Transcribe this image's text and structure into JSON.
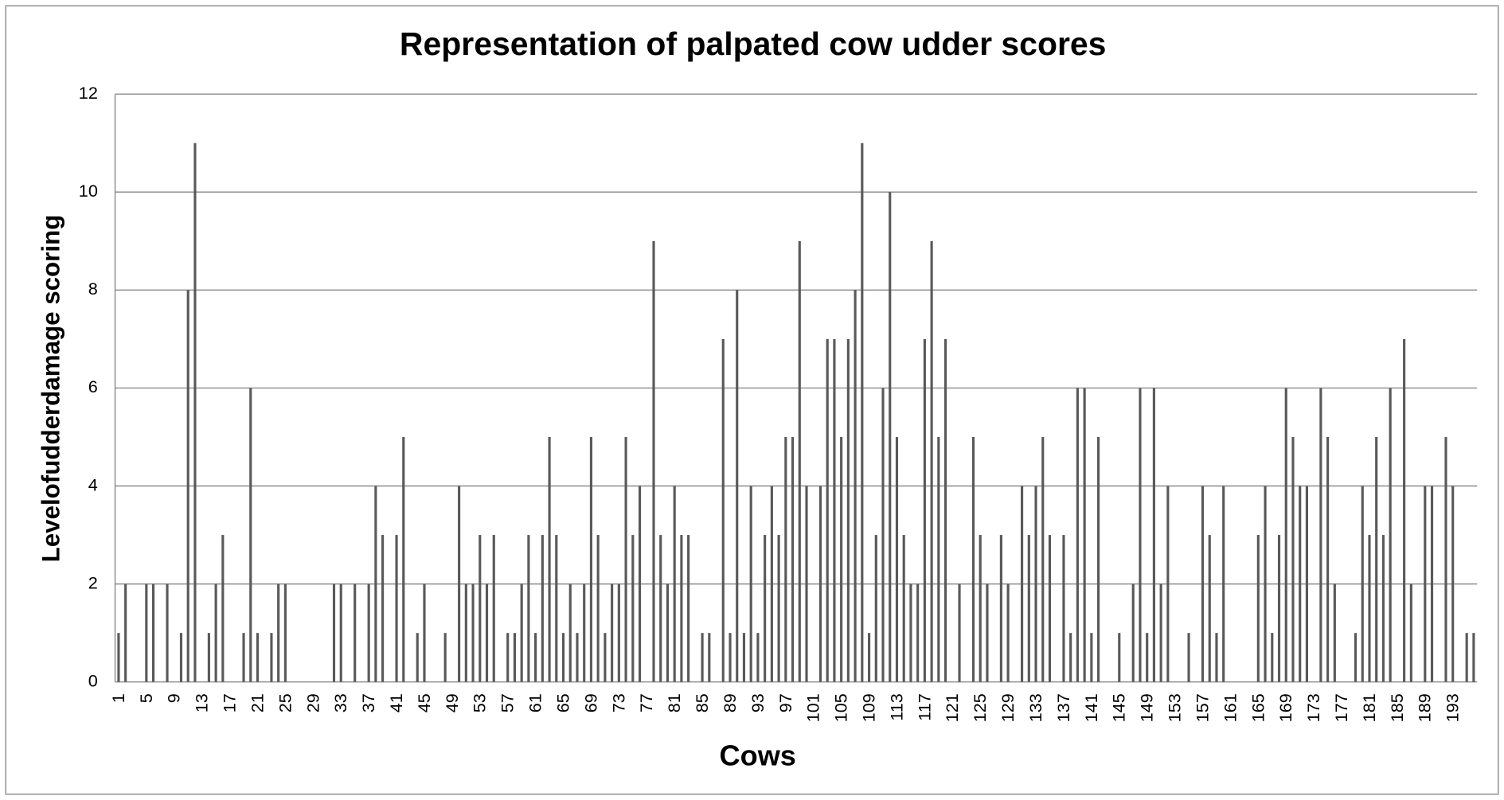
{
  "chart_data": {
    "type": "bar",
    "title": "Representation of palpated cow udder scores",
    "x_label": "Cows",
    "y_label": "Levelofudderdamage scoring",
    "color": "#595959",
    "grid": true,
    "ylim": [
      0,
      12
    ],
    "yticks": [
      0,
      2,
      4,
      6,
      8,
      10,
      12
    ],
    "categories": [
      "1",
      null,
      null,
      null,
      "5",
      null,
      null,
      null,
      "9",
      null,
      null,
      null,
      "13",
      null,
      null,
      null,
      "17",
      null,
      null,
      null,
      "21",
      null,
      null,
      null,
      "25",
      null,
      null,
      null,
      "29",
      null,
      null,
      null,
      "33",
      null,
      null,
      null,
      "37",
      null,
      null,
      null,
      "41",
      null,
      null,
      null,
      "45",
      null,
      null,
      null,
      "49",
      null,
      null,
      null,
      "53",
      null,
      null,
      null,
      "57",
      null,
      null,
      null,
      "61",
      null,
      null,
      null,
      "65",
      null,
      null,
      null,
      "69",
      null,
      null,
      null,
      "73",
      null,
      null,
      null,
      "77",
      null,
      null,
      null,
      "81",
      null,
      null,
      null,
      "85",
      null,
      null,
      null,
      "89",
      null,
      null,
      null,
      "93",
      null,
      null,
      null,
      "97",
      null,
      null,
      null,
      "101",
      null,
      null,
      null,
      "105",
      null,
      null,
      null,
      "109",
      null,
      null,
      null,
      "113",
      null,
      null,
      null,
      "117",
      null,
      null,
      null,
      "121",
      null,
      null,
      null,
      "125",
      null,
      null,
      null,
      "129",
      null,
      null,
      null,
      "133",
      null,
      null,
      null,
      "137",
      null,
      null,
      null,
      "141",
      null,
      null,
      null,
      "145",
      null,
      null,
      null,
      "149",
      null,
      null,
      null,
      "153",
      null,
      null,
      null,
      "157",
      null,
      null,
      null,
      "161",
      null,
      null,
      null,
      "165",
      null,
      null,
      null,
      "169",
      null,
      null,
      null,
      "173",
      null,
      null,
      null,
      "177",
      null,
      null,
      null,
      "181",
      null,
      null,
      null,
      "185",
      null,
      null,
      null,
      "189",
      null,
      null,
      null,
      "193",
      null,
      null,
      null
    ],
    "values": [
      1,
      2,
      0,
      0,
      2,
      2,
      0,
      2,
      0,
      1,
      8,
      11,
      0,
      1,
      2,
      3,
      0,
      0,
      1,
      6,
      1,
      0,
      1,
      2,
      2,
      0,
      0,
      0,
      0,
      0,
      0,
      2,
      2,
      0,
      2,
      0,
      2,
      4,
      3,
      0,
      3,
      5,
      0,
      1,
      2,
      0,
      0,
      1,
      0,
      4,
      2,
      2,
      3,
      2,
      3,
      0,
      1,
      1,
      2,
      3,
      1,
      3,
      5,
      3,
      1,
      2,
      1,
      2,
      5,
      3,
      1,
      2,
      2,
      5,
      3,
      4,
      0,
      9,
      3,
      2,
      4,
      3,
      3,
      0,
      1,
      1,
      0,
      7,
      1,
      8,
      1,
      4,
      1,
      3,
      4,
      3,
      5,
      5,
      9,
      4,
      0,
      4,
      7,
      7,
      5,
      7,
      8,
      11,
      1,
      3,
      6,
      10,
      5,
      3,
      2,
      2,
      7,
      9,
      5,
      7,
      0,
      2,
      0,
      5,
      3,
      2,
      0,
      3,
      2,
      0,
      4,
      3,
      4,
      5,
      3,
      0,
      3,
      1,
      6,
      6,
      1,
      5,
      0,
      0,
      1,
      0,
      2,
      6,
      1,
      6,
      2,
      4,
      0,
      0,
      1,
      0,
      4,
      3,
      1,
      4,
      0,
      0,
      0,
      0,
      3,
      4,
      1,
      3,
      6,
      5,
      4,
      4,
      0,
      6,
      5,
      2,
      0,
      0,
      1,
      4,
      3,
      5,
      3,
      6,
      0,
      7,
      2,
      0,
      4,
      4,
      0,
      5,
      4,
      0,
      1,
      1
    ]
  }
}
